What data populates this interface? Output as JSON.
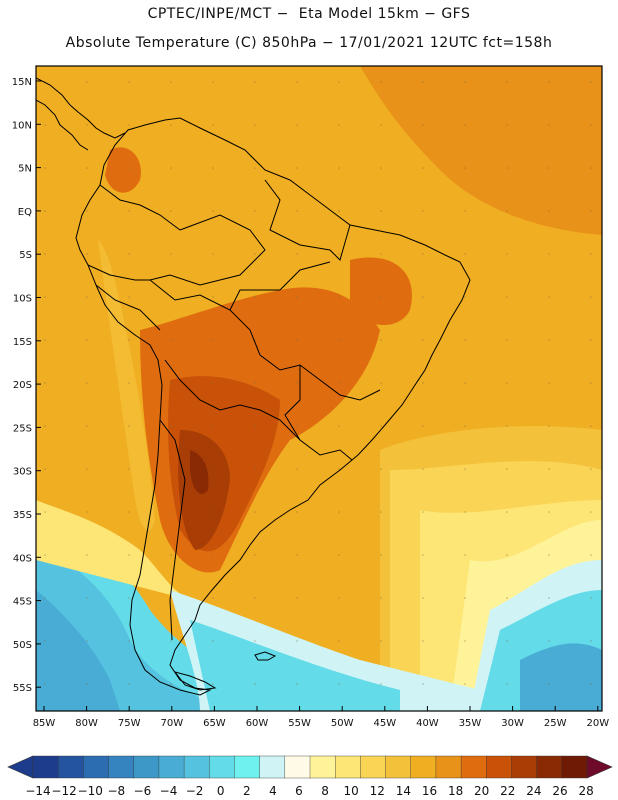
{
  "header": {
    "line1": "CPTEC/INPE/MCT −  Eta Model 15km − GFS",
    "line2": "Absolute Temperature (C) 850hPa − 17/01/2021 12UTC fct=158h"
  },
  "map": {
    "lat_labels": [
      "15N",
      "10N",
      "5N",
      "EQ",
      "5S",
      "10S",
      "15S",
      "20S",
      "25S",
      "30S",
      "35S",
      "40S",
      "45S",
      "50S",
      "55S"
    ],
    "lon_labels": [
      "85W",
      "80W",
      "75W",
      "70W",
      "65W",
      "60W",
      "55W",
      "50W",
      "45W",
      "40W",
      "35W",
      "30W",
      "25W",
      "20W"
    ]
  },
  "colorbar": {
    "labels": [
      "-14",
      "-12",
      "-10",
      "-8",
      "-6",
      "-4",
      "-2",
      "0",
      "2",
      "4",
      "6",
      "8",
      "10",
      "12",
      "14",
      "16",
      "18",
      "20",
      "22",
      "24",
      "26",
      "28"
    ],
    "colors": [
      "#1e3c8c",
      "#24549f",
      "#2c6cb0",
      "#3583bf",
      "#3d98c8",
      "#48acd4",
      "#55c3df",
      "#63dbe8",
      "#6ff2ef",
      "#d0f4f6",
      "#fffbe6",
      "#fff39a",
      "#fde676",
      "#f9d455",
      "#f4c23a",
      "#f0ae22",
      "#e8921a",
      "#df6d10",
      "#c95208",
      "#a83d06",
      "#8a2a05",
      "#6e1a05"
    ]
  }
}
